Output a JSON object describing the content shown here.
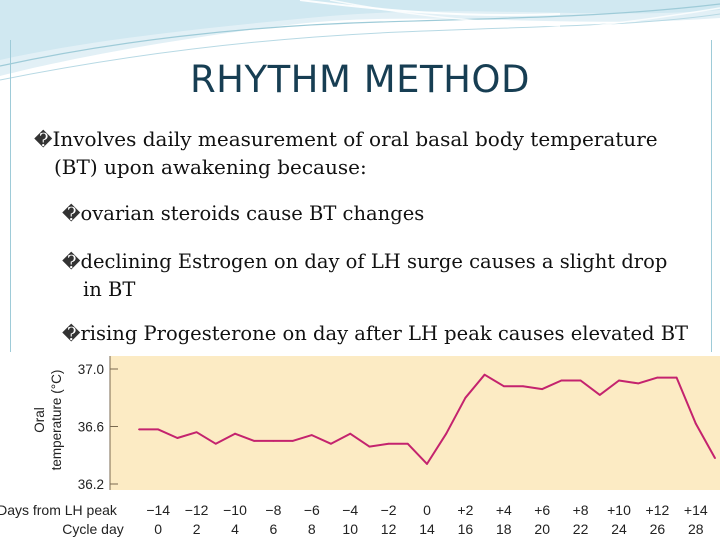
{
  "slide": {
    "title": "RHYTHM METHOD",
    "bullet_glyph": "�",
    "bullets": [
      {
        "line1": "Involves daily measurement of oral basal body temperature",
        "line2": "(BT) upon awakening because:"
      },
      {
        "line1": "ovarian steroids cause BT changes",
        "line2": ""
      },
      {
        "line1": "declining Estrogen on day of LH surge causes a slight drop",
        "line2": "in BT"
      },
      {
        "line1": "rising Progesterone on day after LH peak causes elevated BT",
        "line2": ""
      }
    ]
  },
  "chart_data": {
    "type": "line",
    "ylabel_line1": "Oral",
    "ylabel_line2": "temperature (°C)",
    "xlabel_row1": "Days from LH peak",
    "xlabel_row2": "Cycle day",
    "ylim": [
      36.2,
      37.0
    ],
    "y_ticks": [
      "37.0",
      "36.6",
      "36.2"
    ],
    "y_tick_values": [
      37.0,
      36.6,
      36.2
    ],
    "days_from_lh_labels": [
      "−14",
      "−12",
      "−10",
      "−8",
      "−6",
      "−4",
      "−2",
      "0",
      "+2",
      "+4",
      "+6",
      "+8",
      "+10",
      "+12",
      "+14"
    ],
    "cycle_day_labels": [
      "0",
      "2",
      "4",
      "6",
      "8",
      "10",
      "12",
      "14",
      "16",
      "18",
      "20",
      "22",
      "24",
      "26",
      "28"
    ],
    "x": [
      -15,
      -14,
      -13,
      -12,
      -11,
      -10,
      -9,
      -8,
      -7,
      -6,
      -5,
      -4,
      -3,
      -2,
      -1,
      0,
      1,
      2,
      3,
      4,
      5,
      6,
      7,
      8,
      9,
      10,
      11,
      12,
      13,
      14,
      15
    ],
    "values": [
      36.58,
      36.58,
      36.52,
      36.56,
      36.48,
      36.55,
      36.5,
      36.5,
      36.5,
      36.54,
      36.48,
      36.55,
      36.46,
      36.48,
      36.48,
      36.34,
      36.55,
      36.8,
      36.96,
      36.88,
      36.88,
      36.86,
      36.92,
      36.92,
      36.82,
      36.92,
      36.9,
      36.94,
      36.94,
      36.62,
      36.38
    ],
    "line_color": "#c4236e",
    "plot_background": "#fcebc4",
    "grid": false
  }
}
